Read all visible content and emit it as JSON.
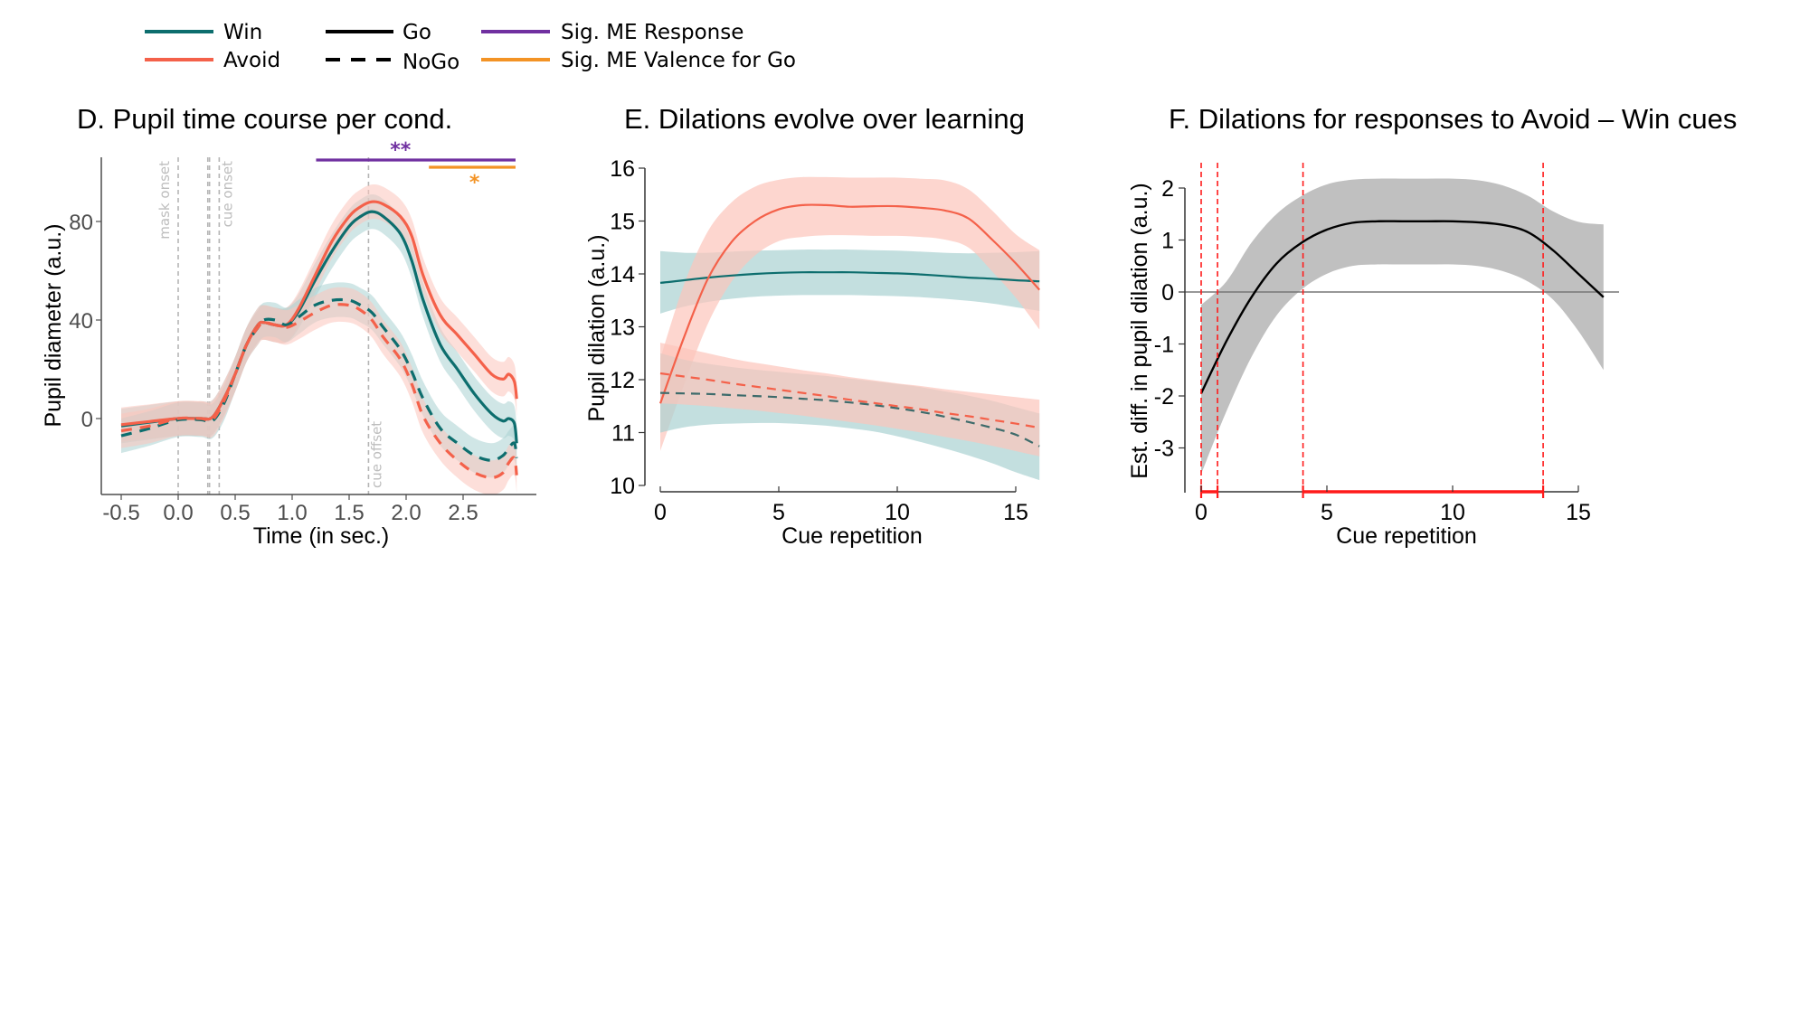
{
  "legend": [
    {
      "label": "Win",
      "color": "#0d6e6e",
      "style": "solid"
    },
    {
      "label": "Avoid",
      "color": "#f4614a",
      "style": "solid"
    },
    {
      "label": "Go",
      "color": "#000000",
      "style": "solid"
    },
    {
      "label": "NoGo",
      "color": "#000000",
      "style": "dashed"
    },
    {
      "label": "Sig. ME Response",
      "color": "#7030a0",
      "style": "solid"
    },
    {
      "label": "Sig. ME Valence for Go",
      "color": "#f39325",
      "style": "solid"
    }
  ],
  "colors": {
    "win": "#0d6e6e",
    "win_band": "#a9d2d1",
    "avoid": "#f4614a",
    "avoid_band": "#fcc4bb",
    "diff_band": "#c0c0c0",
    "sig_red": "#ff1a1a"
  },
  "chart_data": [
    {
      "id": "D",
      "type": "line",
      "title": "D. Pupil time course per cond.",
      "xlabel": "Time (in sec.)",
      "ylabel": "Pupil diameter (a.u.)",
      "xlim": [
        -0.55,
        3.1
      ],
      "ylim": [
        -29,
        104
      ],
      "xticks": [
        -0.5,
        0.0,
        0.5,
        1.0,
        1.5,
        2.0,
        2.5
      ],
      "xtick_labels": [
        "-0.5",
        "0.0",
        "0.5",
        "1.0",
        "1.5",
        "2.0",
        "2.5"
      ],
      "yticks": [
        0,
        40,
        80
      ],
      "ytick_labels": [
        "0",
        "40",
        "80"
      ],
      "vlines": [
        {
          "x": 0.0,
          "label": "mask onset"
        },
        {
          "x": 0.26,
          "label": ""
        },
        {
          "x": 0.275,
          "label": ""
        },
        {
          "x": 0.36,
          "label": "cue onset"
        },
        {
          "x": 1.67,
          "label": "cue offset"
        }
      ],
      "significance": [
        {
          "name": "Sig. ME Response",
          "x_start": 1.21,
          "x_end": 2.96,
          "y": 105,
          "marker": "**"
        },
        {
          "name": "Sig. ME Valence for Go",
          "x_start": 2.2,
          "x_end": 2.96,
          "y": 102,
          "marker": "*"
        }
      ],
      "x": [
        -0.5,
        -0.25,
        0.0,
        0.2,
        0.3,
        0.4,
        0.5,
        0.6,
        0.7,
        0.75,
        0.85,
        0.95,
        1.05,
        1.2,
        1.35,
        1.5,
        1.6,
        1.7,
        1.8,
        1.95,
        2.05,
        2.15,
        2.3,
        2.45,
        2.6,
        2.75,
        2.85,
        2.9,
        2.95,
        2.97
      ],
      "series": [
        {
          "name": "Win Go",
          "condition": "Win",
          "response": "Go",
          "values": [
            -3,
            -1.5,
            0,
            0,
            0.5,
            8,
            18,
            30,
            38,
            39,
            38,
            38,
            43,
            56,
            68,
            78,
            82,
            84,
            82,
            75,
            64,
            48,
            30,
            20,
            10,
            2,
            -1,
            0,
            -2,
            -10
          ],
          "ci": 7
        },
        {
          "name": "Avoid Go",
          "condition": "Avoid",
          "response": "Go",
          "values": [
            -2.5,
            -1.2,
            0,
            0,
            0.5,
            8,
            18,
            30,
            38,
            39,
            38,
            38,
            44,
            58,
            72,
            82,
            86,
            88,
            87,
            82,
            74,
            58,
            42,
            34,
            26,
            18,
            16,
            18,
            15,
            8
          ],
          "ci": 7
        },
        {
          "name": "Win NoGo",
          "condition": "Win",
          "response": "NoGo",
          "values": [
            -7,
            -4,
            -0.5,
            -0.5,
            -1,
            6,
            18,
            30,
            37,
            40,
            40,
            38,
            41,
            46,
            48,
            48,
            46,
            43,
            37,
            28,
            19,
            8,
            -4,
            -10,
            -15,
            -17,
            -15,
            -12,
            -10,
            -16
          ],
          "ci": 7
        },
        {
          "name": "Avoid NoGo",
          "condition": "Avoid",
          "response": "NoGo",
          "values": [
            -5,
            -3,
            0,
            0,
            -0.5,
            7,
            18,
            30,
            37,
            39,
            38,
            37,
            39,
            43,
            46,
            46,
            44,
            40,
            33,
            24,
            14,
            1,
            -10,
            -17,
            -22,
            -24,
            -22,
            -18,
            -16,
            -23
          ],
          "ci": 7
        }
      ]
    },
    {
      "id": "E",
      "type": "line",
      "title": "E. Dilations evolve over learning",
      "xlabel": "Cue repetition",
      "ylabel": "Pupil dilation (a.u.)",
      "xlim": [
        0,
        16
      ],
      "ylim": [
        10,
        16
      ],
      "xticks": [
        0,
        5,
        10,
        15
      ],
      "xtick_labels": [
        "0",
        "5",
        "10",
        "15"
      ],
      "yticks": [
        10,
        11,
        12,
        13,
        14,
        15,
        16
      ],
      "ytick_labels": [
        "10",
        "11",
        "12",
        "13",
        "14",
        "15",
        "16"
      ],
      "x": [
        0,
        1,
        2,
        3,
        4,
        5,
        6,
        7,
        8,
        9,
        10,
        11,
        12,
        13,
        14,
        15,
        16
      ],
      "series": [
        {
          "name": "Win Go",
          "condition": "Win",
          "response": "Go",
          "values": [
            13.83,
            13.88,
            13.93,
            13.97,
            14.0,
            14.02,
            14.03,
            14.03,
            14.03,
            14.02,
            14.01,
            13.99,
            13.96,
            13.93,
            13.91,
            13.88,
            13.86
          ],
          "lower": [
            13.25,
            13.38,
            13.47,
            13.53,
            13.57,
            13.59,
            13.6,
            13.6,
            13.6,
            13.59,
            13.58,
            13.56,
            13.53,
            13.49,
            13.44,
            13.37,
            13.3
          ],
          "upper": [
            14.43,
            14.4,
            14.4,
            14.42,
            14.44,
            14.45,
            14.46,
            14.46,
            14.46,
            14.45,
            14.44,
            14.42,
            14.4,
            14.39,
            14.4,
            14.41,
            14.43
          ]
        },
        {
          "name": "Avoid Go",
          "condition": "Avoid",
          "response": "Go",
          "values": [
            11.55,
            12.8,
            13.9,
            14.6,
            15.0,
            15.22,
            15.3,
            15.3,
            15.27,
            15.28,
            15.28,
            15.25,
            15.2,
            15.05,
            14.65,
            14.2,
            13.7
          ],
          "lower": [
            10.65,
            11.9,
            13.05,
            13.85,
            14.35,
            14.62,
            14.7,
            14.73,
            14.73,
            14.72,
            14.72,
            14.7,
            14.65,
            14.5,
            14.05,
            13.55,
            12.95
          ],
          "upper": [
            12.4,
            13.8,
            14.8,
            15.35,
            15.65,
            15.78,
            15.83,
            15.83,
            15.82,
            15.82,
            15.82,
            15.8,
            15.77,
            15.6,
            15.2,
            14.75,
            14.45
          ]
        },
        {
          "name": "Win NoGo",
          "condition": "Win",
          "response": "NoGo",
          "values": [
            11.75,
            11.74,
            11.73,
            11.71,
            11.69,
            11.67,
            11.64,
            11.61,
            11.57,
            11.52,
            11.46,
            11.39,
            11.3,
            11.2,
            11.09,
            10.96,
            10.74
          ],
          "lower": [
            11.0,
            11.1,
            11.15,
            11.17,
            11.18,
            11.18,
            11.16,
            11.13,
            11.08,
            11.02,
            10.93,
            10.82,
            10.7,
            10.57,
            10.42,
            10.25,
            10.1
          ],
          "upper": [
            12.5,
            12.38,
            12.3,
            12.24,
            12.19,
            12.15,
            12.11,
            12.07,
            12.02,
            11.97,
            11.92,
            11.86,
            11.78,
            11.7,
            11.6,
            11.48,
            11.36
          ]
        },
        {
          "name": "Avoid NoGo",
          "condition": "Avoid",
          "response": "NoGo",
          "values": [
            12.12,
            12.06,
            12.0,
            11.93,
            11.87,
            11.81,
            11.75,
            11.69,
            11.62,
            11.56,
            11.5,
            11.44,
            11.37,
            11.31,
            11.24,
            11.17,
            11.09
          ],
          "lower": [
            11.55,
            11.53,
            11.5,
            11.46,
            11.42,
            11.37,
            11.32,
            11.26,
            11.2,
            11.14,
            11.07,
            11.0,
            10.92,
            10.84,
            10.75,
            10.65,
            10.55
          ],
          "upper": [
            12.7,
            12.6,
            12.5,
            12.4,
            12.32,
            12.25,
            12.18,
            12.12,
            12.05,
            11.99,
            11.93,
            11.88,
            11.82,
            11.77,
            11.72,
            11.67,
            11.62
          ]
        }
      ]
    },
    {
      "id": "F",
      "type": "line",
      "title": "F. Dilations for responses to Avoid – Win cues",
      "xlabel": "Cue repetition",
      "ylabel": "Est. diff. in pupil dilation (a.u.)",
      "xlim": [
        0,
        16
      ],
      "ylim": [
        -3.8,
        2.2
      ],
      "xticks": [
        0,
        5,
        10,
        15
      ],
      "xtick_labels": [
        "0",
        "5",
        "10",
        "15"
      ],
      "yticks": [
        -3,
        -2,
        -1,
        0,
        1,
        2
      ],
      "ytick_labels": [
        "-3",
        "-2",
        "-1",
        "0",
        "1",
        "2"
      ],
      "hline": 0,
      "significant_intervals": [
        [
          0,
          0.65
        ],
        [
          4.05,
          13.6
        ]
      ],
      "x": [
        0,
        1,
        2,
        3,
        4,
        5,
        6,
        7,
        8,
        9,
        10,
        11,
        12,
        13,
        14,
        15,
        16
      ],
      "series": [
        {
          "name": "Avoid - Win estimate",
          "values": [
            -1.95,
            -0.95,
            -0.1,
            0.55,
            0.95,
            1.2,
            1.33,
            1.36,
            1.36,
            1.36,
            1.36,
            1.34,
            1.29,
            1.15,
            0.8,
            0.35,
            -0.1
          ],
          "lower": [
            -3.5,
            -2.3,
            -1.25,
            -0.45,
            0.05,
            0.35,
            0.5,
            0.53,
            0.53,
            0.53,
            0.53,
            0.5,
            0.4,
            0.2,
            -0.15,
            -0.75,
            -1.5
          ],
          "upper": [
            -0.25,
            0.2,
            0.95,
            1.5,
            1.85,
            2.07,
            2.16,
            2.18,
            2.18,
            2.18,
            2.18,
            2.15,
            2.05,
            1.85,
            1.55,
            1.35,
            1.3
          ]
        }
      ]
    }
  ]
}
